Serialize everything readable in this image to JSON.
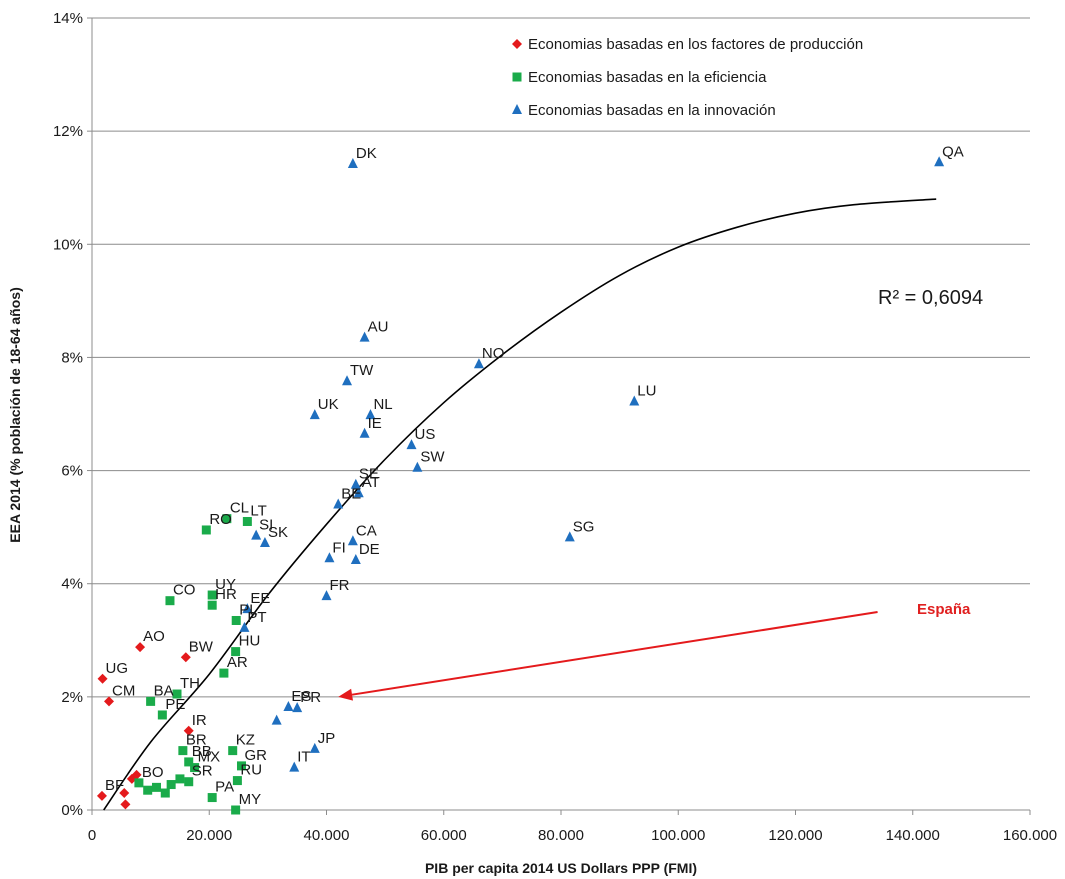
{
  "chart_data": {
    "type": "scatter",
    "title": "",
    "xlabel": "PIB per capita 2014 US Dollars PPP (FMI)",
    "ylabel": "EEA 2014 (% población de 18-64 años)",
    "xlim": [
      0,
      160000
    ],
    "ylim": [
      0,
      14
    ],
    "x_ticks": [
      0,
      20000,
      40000,
      60000,
      80000,
      100000,
      120000,
      140000,
      160000
    ],
    "x_tick_labels": [
      "0",
      "20.000",
      "40.000",
      "60.000",
      "80.000",
      "100.000",
      "120.000",
      "140.000",
      "160.000"
    ],
    "y_ticks": [
      0,
      2,
      4,
      6,
      8,
      10,
      12,
      14
    ],
    "y_tick_labels": [
      "0%",
      "2%",
      "4%",
      "6%",
      "8%",
      "10%",
      "12%",
      "14%"
    ],
    "grid": "horizontal",
    "legend_position": "top-right",
    "annotations": {
      "r2": "R² = 0,6094",
      "spain": "España"
    },
    "series": [
      {
        "name": "Economias basadas en los factores de producción",
        "color": "#e41a1c",
        "marker": "diamond",
        "points": [
          {
            "label": "UG",
            "x": 1800,
            "y": 2.32
          },
          {
            "label": "CM",
            "x": 2900,
            "y": 1.92
          },
          {
            "label": "AO",
            "x": 8200,
            "y": 2.88
          },
          {
            "label": "BW",
            "x": 16000,
            "y": 2.7
          },
          {
            "label": "IR",
            "x": 16500,
            "y": 1.4
          },
          {
            "label": "BF",
            "x": 1700,
            "y": 0.25
          },
          {
            "label": "",
            "x": 5500,
            "y": 0.3
          },
          {
            "label": "",
            "x": 5700,
            "y": 0.1
          },
          {
            "label": "",
            "x": 6800,
            "y": 0.55
          },
          {
            "label": "",
            "x": 7600,
            "y": 0.62
          }
        ]
      },
      {
        "name": "Economias basadas en la eficiencia",
        "color": "#1aab4a",
        "marker": "square",
        "points": [
          {
            "label": "CL",
            "x": 23000,
            "y": 5.15
          },
          {
            "label": "LT",
            "x": 26500,
            "y": 5.1
          },
          {
            "label": "RO",
            "x": 19500,
            "y": 4.95
          },
          {
            "label": "CO",
            "x": 13300,
            "y": 3.7
          },
          {
            "label": "UY",
            "x": 20500,
            "y": 3.8
          },
          {
            "label": "HR",
            "x": 20500,
            "y": 3.62
          },
          {
            "label": "PL",
            "x": 24600,
            "y": 3.35
          },
          {
            "label": "HU",
            "x": 24500,
            "y": 2.8
          },
          {
            "label": "AR",
            "x": 22500,
            "y": 2.42
          },
          {
            "label": "TH",
            "x": 14500,
            "y": 2.05
          },
          {
            "label": "BA",
            "x": 10000,
            "y": 1.92
          },
          {
            "label": "PE",
            "x": 12000,
            "y": 1.68
          },
          {
            "label": "BR",
            "x": 15500,
            "y": 1.05
          },
          {
            "label": "KZ",
            "x": 24000,
            "y": 1.05
          },
          {
            "label": "BB",
            "x": 16500,
            "y": 0.85
          },
          {
            "label": "MX",
            "x": 17500,
            "y": 0.75
          },
          {
            "label": "GR",
            "x": 25500,
            "y": 0.78
          },
          {
            "label": "SR",
            "x": 16500,
            "y": 0.5
          },
          {
            "label": "RU",
            "x": 24800,
            "y": 0.52
          },
          {
            "label": "PA",
            "x": 20500,
            "y": 0.22
          },
          {
            "label": "MY",
            "x": 24500,
            "y": 0.0
          },
          {
            "label": "BO",
            "x": 8000,
            "y": 0.48
          },
          {
            "label": "",
            "x": 11000,
            "y": 0.4
          },
          {
            "label": "",
            "x": 12500,
            "y": 0.3
          },
          {
            "label": "",
            "x": 13500,
            "y": 0.45
          },
          {
            "label": "",
            "x": 15000,
            "y": 0.55
          },
          {
            "label": "",
            "x": 9500,
            "y": 0.35
          }
        ]
      },
      {
        "name": "Economias basadas en la innovación",
        "color": "#1f6fbf",
        "marker": "triangle",
        "points": [
          {
            "label": "QA",
            "x": 144500,
            "y": 11.45
          },
          {
            "label": "DK",
            "x": 44500,
            "y": 11.42
          },
          {
            "label": "AU",
            "x": 46500,
            "y": 8.35
          },
          {
            "label": "NO",
            "x": 66000,
            "y": 7.88
          },
          {
            "label": "TW",
            "x": 43500,
            "y": 7.58
          },
          {
            "label": "UK",
            "x": 38000,
            "y": 6.98
          },
          {
            "label": "NL",
            "x": 47500,
            "y": 6.98
          },
          {
            "label": "IE",
            "x": 46500,
            "y": 6.65
          },
          {
            "label": "LU",
            "x": 92500,
            "y": 7.22
          },
          {
            "label": "US",
            "x": 54500,
            "y": 6.45
          },
          {
            "label": "SW",
            "x": 55500,
            "y": 6.05
          },
          {
            "label": "SE",
            "x": 45000,
            "y": 5.75
          },
          {
            "label": "AT",
            "x": 45500,
            "y": 5.6
          },
          {
            "label": "BE",
            "x": 42000,
            "y": 5.4
          },
          {
            "label": "SI",
            "x": 28000,
            "y": 4.85
          },
          {
            "label": "SK",
            "x": 29500,
            "y": 4.72
          },
          {
            "label": "CA",
            "x": 44500,
            "y": 4.75
          },
          {
            "label": "FI",
            "x": 40500,
            "y": 4.45
          },
          {
            "label": "DE",
            "x": 45000,
            "y": 4.42
          },
          {
            "label": "SG",
            "x": 81500,
            "y": 4.82
          },
          {
            "label": "FR",
            "x": 40000,
            "y": 3.78
          },
          {
            "label": "EE",
            "x": 26500,
            "y": 3.55
          },
          {
            "label": "PT",
            "x": 26000,
            "y": 3.22
          },
          {
            "label": "ES",
            "x": 33500,
            "y": 1.82
          },
          {
            "label": "PR",
            "x": 35000,
            "y": 1.8
          },
          {
            "label": "",
            "x": 31500,
            "y": 1.58
          },
          {
            "label": "JP",
            "x": 38000,
            "y": 1.08
          },
          {
            "label": "IT",
            "x": 34500,
            "y": 0.75
          }
        ]
      }
    ],
    "trendline": {
      "type": "polynomial",
      "points": [
        [
          2000,
          0.0
        ],
        [
          10000,
          1.2
        ],
        [
          20000,
          2.4
        ],
        [
          30000,
          3.8
        ],
        [
          40000,
          5.05
        ],
        [
          50000,
          6.2
        ],
        [
          60000,
          7.2
        ],
        [
          70000,
          8.05
        ],
        [
          80000,
          8.8
        ],
        [
          90000,
          9.45
        ],
        [
          100000,
          9.95
        ],
        [
          110000,
          10.3
        ],
        [
          120000,
          10.55
        ],
        [
          130000,
          10.7
        ],
        [
          144000,
          10.8
        ]
      ]
    },
    "spain_arrow": {
      "from": [
        134000,
        3.5
      ],
      "to": [
        42000,
        2.0
      ]
    }
  }
}
